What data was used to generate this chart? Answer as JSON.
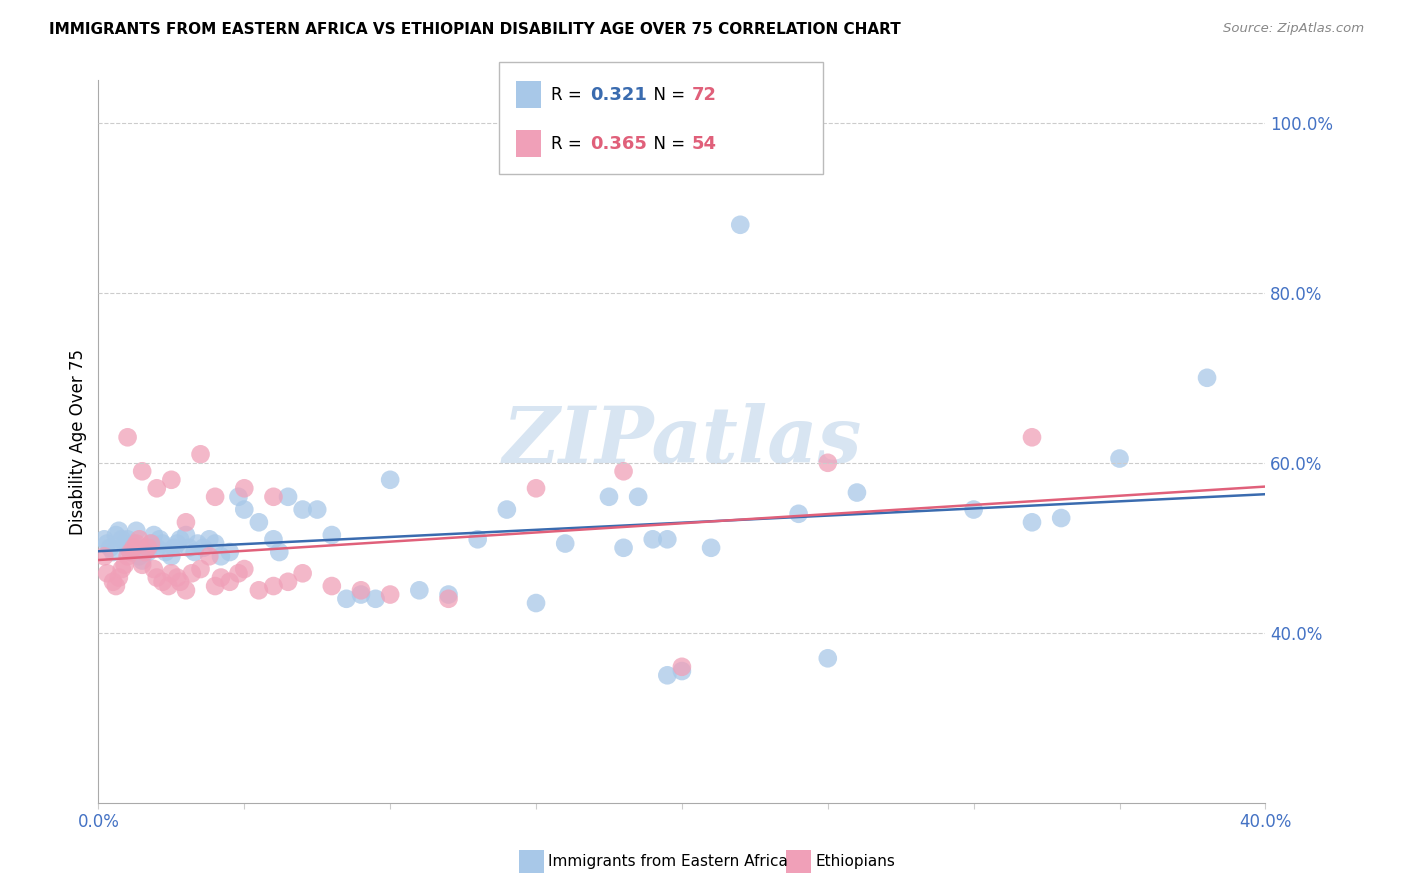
{
  "title": "IMMIGRANTS FROM EASTERN AFRICA VS ETHIOPIAN DISABILITY AGE OVER 75 CORRELATION CHART",
  "source": "Source: ZipAtlas.com",
  "ylabel": "Disability Age Over 75",
  "xlim": [
    0.0,
    0.4
  ],
  "ylim": [
    0.2,
    1.05
  ],
  "blue_color": "#A8C8E8",
  "pink_color": "#F0A0B8",
  "blue_line_color": "#3A6BAF",
  "pink_line_color": "#E0607A",
  "R_blue": "0.321",
  "N_blue": "72",
  "R_pink": "0.365",
  "N_pink": "54",
  "legend_label_blue": "Immigrants from Eastern Africa",
  "legend_label_pink": "Ethiopians",
  "watermark": "ZIPatlas",
  "blue_scatter_x": [
    0.002,
    0.003,
    0.004,
    0.005,
    0.006,
    0.007,
    0.008,
    0.009,
    0.01,
    0.01,
    0.011,
    0.012,
    0.013,
    0.014,
    0.015,
    0.016,
    0.017,
    0.018,
    0.019,
    0.02,
    0.021,
    0.022,
    0.023,
    0.025,
    0.026,
    0.027,
    0.028,
    0.03,
    0.031,
    0.033,
    0.034,
    0.036,
    0.038,
    0.04,
    0.042,
    0.045,
    0.048,
    0.05,
    0.055,
    0.06,
    0.062,
    0.065,
    0.07,
    0.075,
    0.08,
    0.085,
    0.09,
    0.095,
    0.1,
    0.11,
    0.12,
    0.13,
    0.14,
    0.15,
    0.16,
    0.175,
    0.185,
    0.195,
    0.21,
    0.22,
    0.24,
    0.195,
    0.26,
    0.32,
    0.33,
    0.35,
    0.38,
    0.18,
    0.19,
    0.2,
    0.25,
    0.3
  ],
  "blue_scatter_y": [
    0.51,
    0.505,
    0.5,
    0.495,
    0.515,
    0.52,
    0.51,
    0.505,
    0.5,
    0.51,
    0.495,
    0.505,
    0.52,
    0.49,
    0.485,
    0.5,
    0.495,
    0.505,
    0.515,
    0.5,
    0.51,
    0.505,
    0.495,
    0.49,
    0.5,
    0.505,
    0.51,
    0.515,
    0.5,
    0.495,
    0.505,
    0.5,
    0.51,
    0.505,
    0.49,
    0.495,
    0.56,
    0.545,
    0.53,
    0.51,
    0.495,
    0.56,
    0.545,
    0.545,
    0.515,
    0.44,
    0.445,
    0.44,
    0.58,
    0.45,
    0.445,
    0.51,
    0.545,
    0.435,
    0.505,
    0.56,
    0.56,
    0.51,
    0.5,
    0.88,
    0.54,
    0.35,
    0.565,
    0.53,
    0.535,
    0.605,
    0.7,
    0.5,
    0.51,
    0.355,
    0.37,
    0.545
  ],
  "pink_scatter_x": [
    0.002,
    0.003,
    0.005,
    0.006,
    0.007,
    0.008,
    0.009,
    0.01,
    0.011,
    0.012,
    0.013,
    0.014,
    0.015,
    0.016,
    0.017,
    0.018,
    0.019,
    0.02,
    0.022,
    0.024,
    0.025,
    0.027,
    0.028,
    0.03,
    0.032,
    0.035,
    0.038,
    0.04,
    0.042,
    0.045,
    0.048,
    0.05,
    0.055,
    0.06,
    0.065,
    0.07,
    0.08,
    0.09,
    0.01,
    0.015,
    0.02,
    0.025,
    0.03,
    0.035,
    0.04,
    0.05,
    0.06,
    0.1,
    0.12,
    0.15,
    0.18,
    0.2,
    0.25,
    0.32
  ],
  "pink_scatter_y": [
    0.49,
    0.47,
    0.46,
    0.455,
    0.465,
    0.475,
    0.48,
    0.49,
    0.495,
    0.5,
    0.505,
    0.51,
    0.48,
    0.495,
    0.5,
    0.505,
    0.475,
    0.465,
    0.46,
    0.455,
    0.47,
    0.465,
    0.46,
    0.45,
    0.47,
    0.475,
    0.49,
    0.455,
    0.465,
    0.46,
    0.47,
    0.475,
    0.45,
    0.455,
    0.46,
    0.47,
    0.455,
    0.45,
    0.63,
    0.59,
    0.57,
    0.58,
    0.53,
    0.61,
    0.56,
    0.57,
    0.56,
    0.445,
    0.44,
    0.57,
    0.59,
    0.36,
    0.6,
    0.63
  ]
}
